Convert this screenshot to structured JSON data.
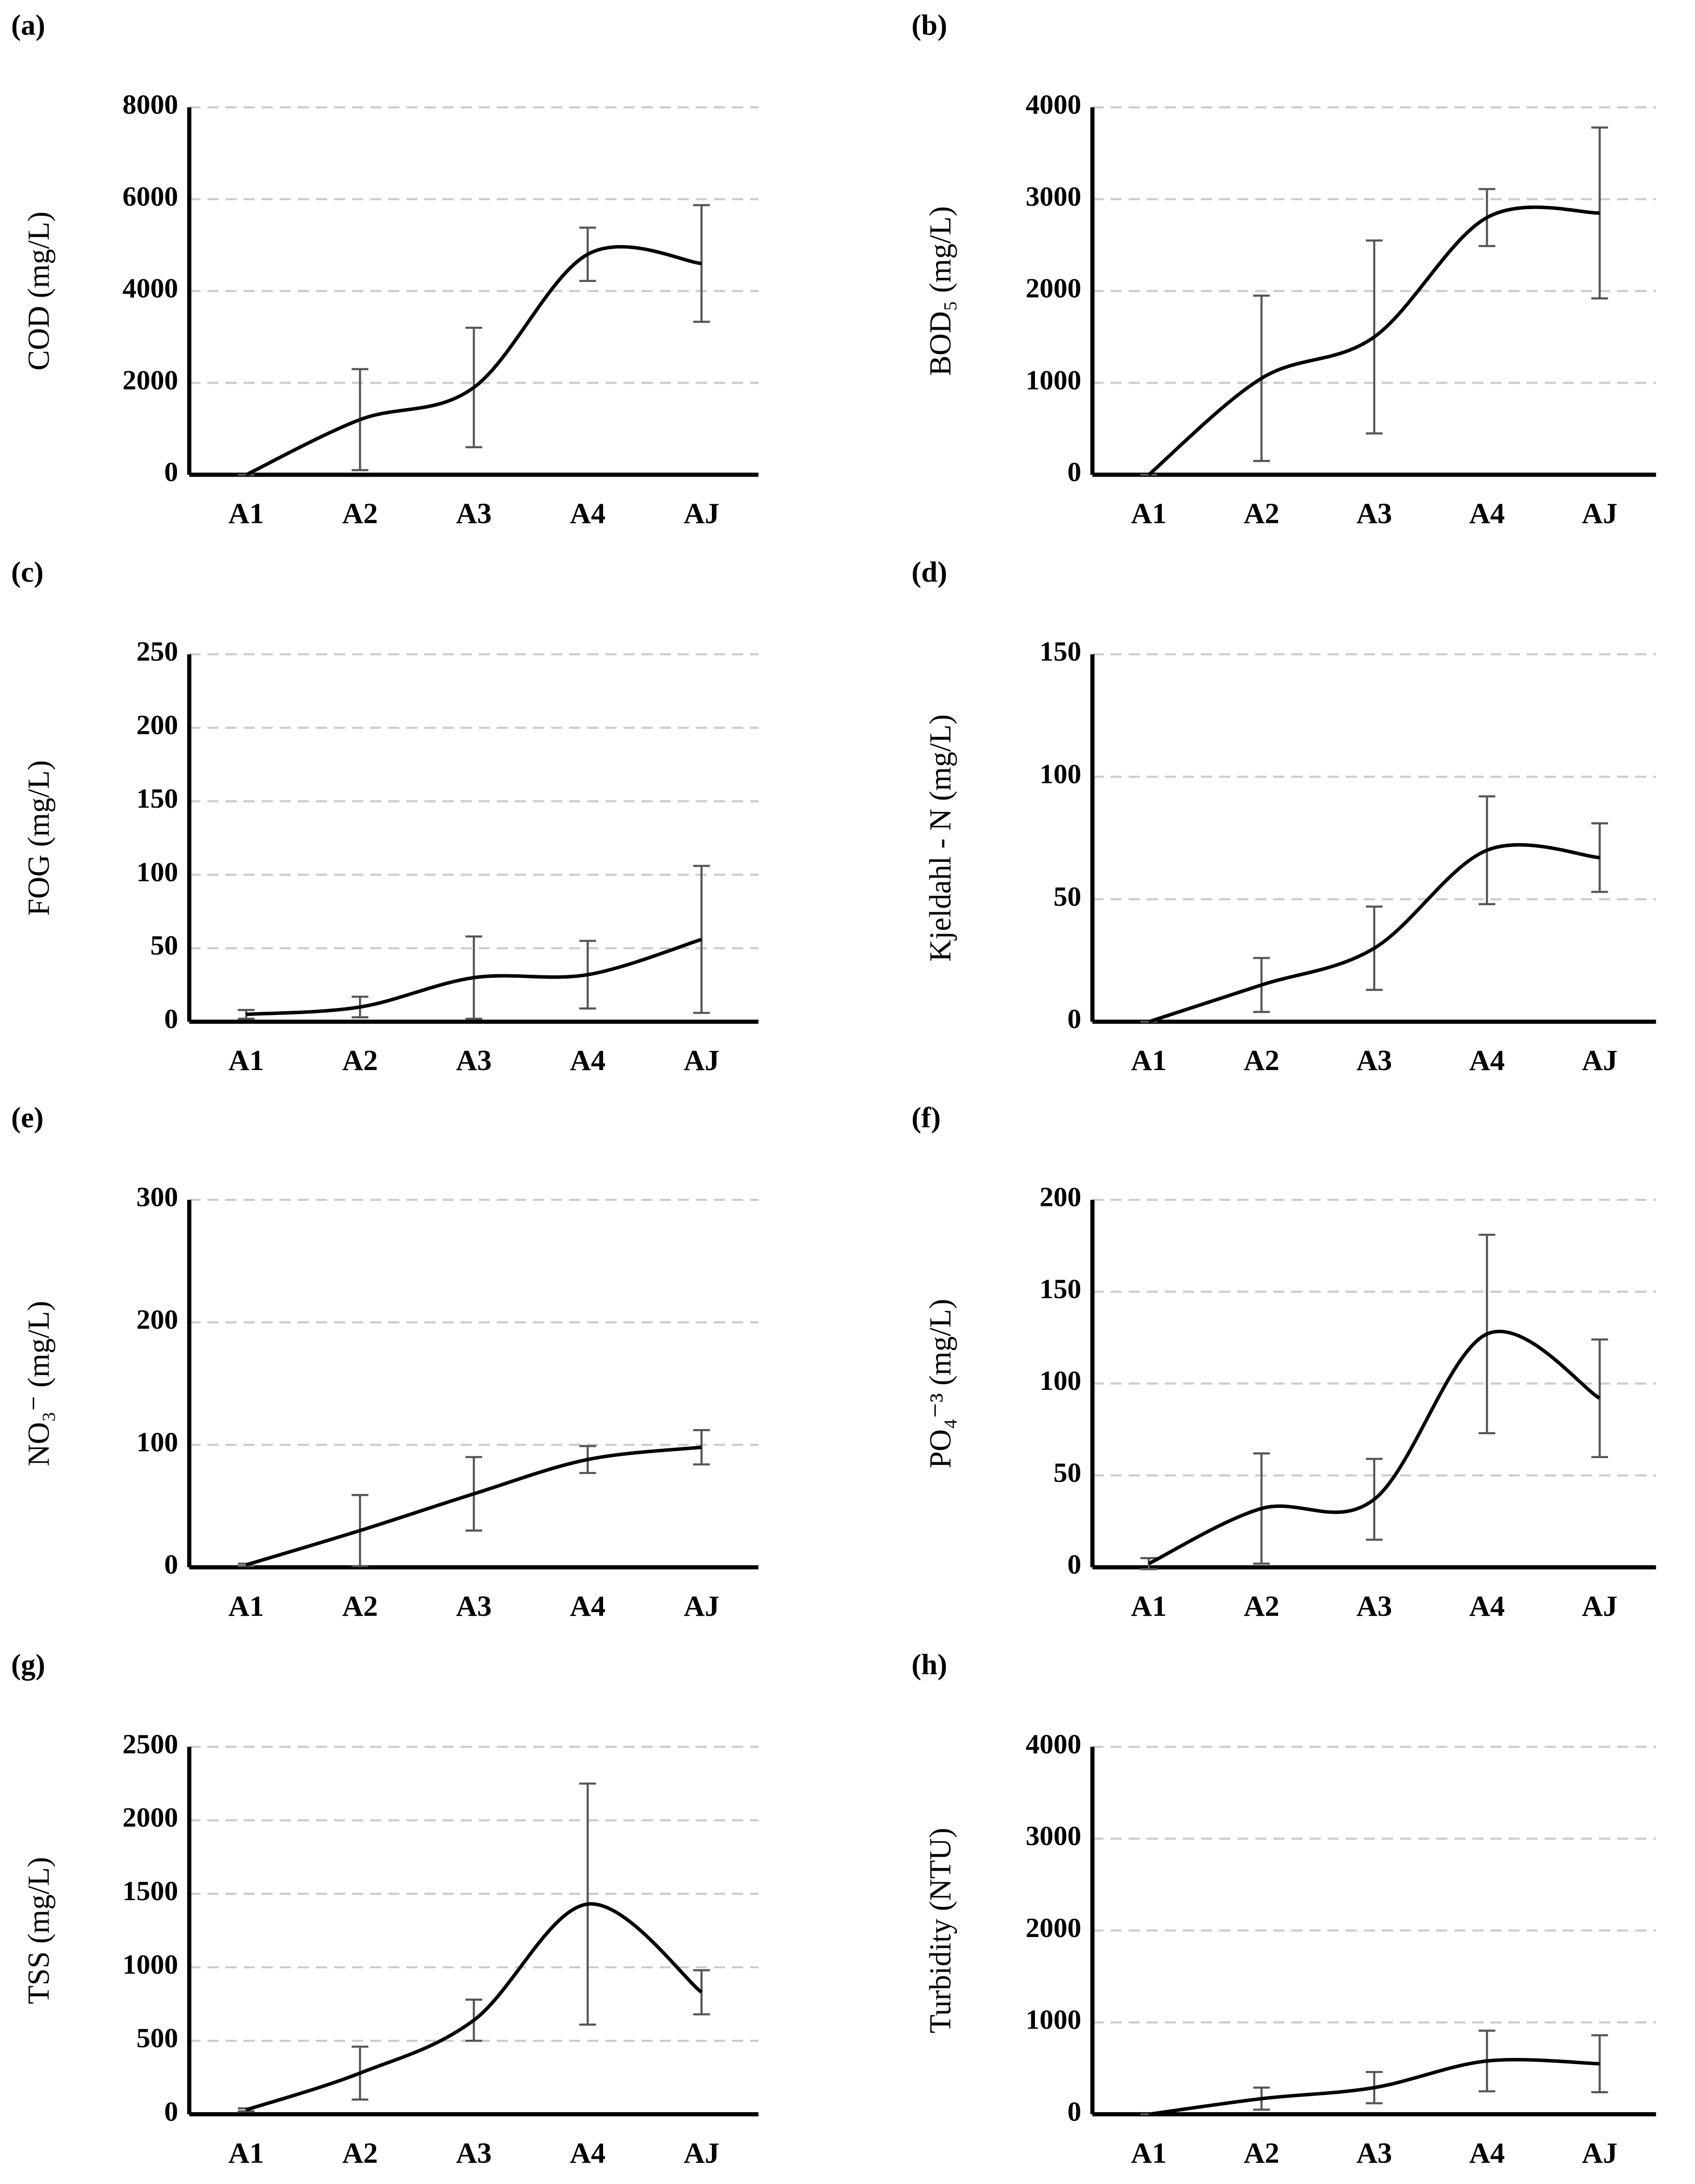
{
  "chart_data": [
    {
      "type": "line",
      "label": "(a)",
      "ylabel": "COD (mg/L)",
      "categories": [
        "A1",
        "A2",
        "A3",
        "A4",
        "AJ"
      ],
      "values": [
        0,
        1200,
        1900,
        4800,
        4600
      ],
      "errors": [
        0,
        1100,
        1300,
        580,
        1270
      ],
      "ylim": [
        0,
        8000
      ],
      "yticks": [
        0,
        2000,
        4000,
        6000,
        8000
      ],
      "grid": true,
      "color": "#000000"
    },
    {
      "type": "line",
      "label": "(b)",
      "ylabel": "BOD₅ (mg/L)",
      "categories": [
        "A1",
        "A2",
        "A3",
        "A4",
        "AJ"
      ],
      "values": [
        0,
        1050,
        1500,
        2800,
        2850
      ],
      "errors": [
        0,
        900,
        1050,
        310,
        930
      ],
      "ylim": [
        0,
        4000
      ],
      "yticks": [
        0,
        1000,
        2000,
        3000,
        4000
      ],
      "grid": true,
      "color": "#000000"
    },
    {
      "type": "line",
      "label": "(c)",
      "ylabel": "FOG (mg/L)",
      "categories": [
        "A1",
        "A2",
        "A3",
        "A4",
        "AJ"
      ],
      "values": [
        5,
        10,
        30,
        32,
        56
      ],
      "errors": [
        3,
        7,
        28,
        23,
        50
      ],
      "ylim": [
        0,
        250
      ],
      "yticks": [
        0,
        50,
        100,
        150,
        200,
        250
      ],
      "grid": true,
      "color": "#000000"
    },
    {
      "type": "line",
      "label": "(d)",
      "ylabel": "Kjeldahl - N (mg/L)",
      "categories": [
        "A1",
        "A2",
        "A3",
        "A4",
        "AJ"
      ],
      "values": [
        0,
        15,
        30,
        70,
        67
      ],
      "errors": [
        0,
        11,
        17,
        22,
        14
      ],
      "ylim": [
        0,
        150
      ],
      "yticks": [
        0,
        50,
        100,
        150
      ],
      "grid": true,
      "color": "#000000"
    },
    {
      "type": "line",
      "label": "(e)",
      "ylabel": "NO₃⁻ (mg/L)",
      "categories": [
        "A1",
        "A2",
        "A3",
        "A4",
        "AJ"
      ],
      "values": [
        2,
        30,
        60,
        88,
        98
      ],
      "errors": [
        1,
        29,
        30,
        11,
        14
      ],
      "ylim": [
        0,
        300
      ],
      "yticks": [
        0,
        100,
        200,
        300
      ],
      "grid": true,
      "color": "#000000"
    },
    {
      "type": "line",
      "label": "(f)",
      "ylabel": "PO₄⁻³ (mg/L)",
      "categories": [
        "A1",
        "A2",
        "A3",
        "A4",
        "AJ"
      ],
      "values": [
        2,
        32,
        37,
        127,
        92
      ],
      "errors": [
        3,
        30,
        22,
        54,
        32
      ],
      "ylim": [
        0,
        200
      ],
      "yticks": [
        0,
        50,
        100,
        150,
        200
      ],
      "grid": true,
      "color": "#000000"
    },
    {
      "type": "line",
      "label": "(g)",
      "ylabel": "TSS (mg/L)",
      "categories": [
        "A1",
        "A2",
        "A3",
        "A4",
        "AJ"
      ],
      "values": [
        30,
        280,
        640,
        1430,
        830
      ],
      "errors": [
        10,
        180,
        140,
        820,
        150
      ],
      "ylim": [
        0,
        2500
      ],
      "yticks": [
        0,
        500,
        1000,
        1500,
        2000,
        2500
      ],
      "grid": true,
      "color": "#000000"
    },
    {
      "type": "line",
      "label": "(h)",
      "ylabel": "Turbidity (NTU)",
      "categories": [
        "A1",
        "A2",
        "A3",
        "A4",
        "AJ"
      ],
      "values": [
        0,
        170,
        290,
        580,
        550
      ],
      "errors": [
        0,
        120,
        170,
        330,
        310
      ],
      "ylim": [
        0,
        4000
      ],
      "yticks": [
        0,
        1000,
        2000,
        3000,
        4000
      ],
      "grid": true,
      "color": "#000000"
    }
  ]
}
